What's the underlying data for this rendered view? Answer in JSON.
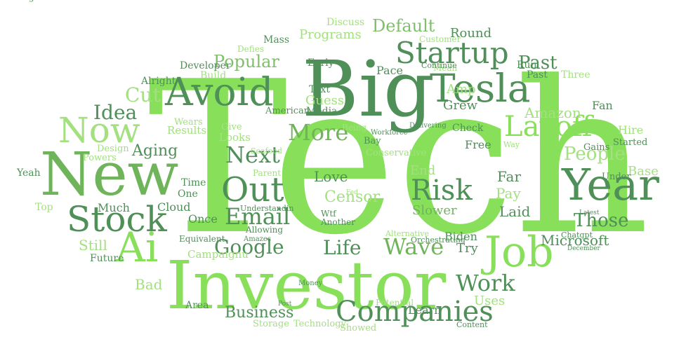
{
  "colors": {
    "light": "#a3e07f",
    "bright": "#88e05a",
    "mid": "#6fb45a",
    "dark": "#4f8f58",
    "soft": "#7fbf6a"
  },
  "words": [
    {
      "text": "Tech",
      "c": "bright"
    },
    {
      "text": "Big",
      "c": "dark"
    },
    {
      "text": "Investor",
      "c": "bright"
    },
    {
      "text": "New",
      "c": "mid"
    },
    {
      "text": "Job",
      "c": "bright"
    },
    {
      "text": "Year",
      "c": "dark"
    },
    {
      "text": "Avoid",
      "c": "dark"
    },
    {
      "text": "Tesla",
      "c": "dark"
    },
    {
      "text": "Startup",
      "c": "dark"
    },
    {
      "text": "Layoff",
      "c": "bright"
    },
    {
      "text": "Ai",
      "c": "bright"
    },
    {
      "text": "Stock",
      "c": "dark"
    },
    {
      "text": "Now",
      "c": "light"
    },
    {
      "text": "Out",
      "c": "dark"
    },
    {
      "text": "Risk",
      "c": "dark"
    },
    {
      "text": "Companies",
      "c": "dark"
    },
    {
      "text": "Wave",
      "c": "mid"
    },
    {
      "text": "More",
      "c": "mid"
    },
    {
      "text": "Next",
      "c": "dark"
    },
    {
      "text": "Email",
      "c": "dark"
    },
    {
      "text": "Google",
      "c": "dark"
    },
    {
      "text": "Work",
      "c": "dark"
    },
    {
      "text": "Life",
      "c": "dark"
    },
    {
      "text": "Business",
      "c": "dark"
    },
    {
      "text": "Idea",
      "c": "dark"
    },
    {
      "text": "Cut",
      "c": "light"
    },
    {
      "text": "Popular",
      "c": "soft"
    },
    {
      "text": "Past",
      "c": "dark"
    },
    {
      "text": "People",
      "c": "light"
    },
    {
      "text": "Those",
      "c": "dark"
    },
    {
      "text": "Default",
      "c": "soft"
    },
    {
      "text": "Aging",
      "c": "dark"
    },
    {
      "text": "Censor",
      "c": "light"
    },
    {
      "text": "Love",
      "c": "dark"
    },
    {
      "text": "Amazon",
      "c": "light"
    },
    {
      "text": "Microsoft",
      "c": "dark"
    },
    {
      "text": "Still",
      "c": "light"
    },
    {
      "text": "Bad",
      "c": "light"
    },
    {
      "text": "Pay",
      "c": "light"
    },
    {
      "text": "Far",
      "c": "dark"
    },
    {
      "text": "Laid",
      "c": "dark"
    },
    {
      "text": "Base",
      "c": "light"
    },
    {
      "text": "Uses",
      "c": "light"
    },
    {
      "text": "Try",
      "c": "dark"
    },
    {
      "text": "Slower",
      "c": "mid"
    },
    {
      "text": "End",
      "c": "light"
    },
    {
      "text": "Round",
      "c": "dark"
    },
    {
      "text": "Amp",
      "c": "light"
    },
    {
      "text": "Programs",
      "c": "light"
    },
    {
      "text": "Guess",
      "c": "light"
    },
    {
      "text": "Grew",
      "c": "dark"
    },
    {
      "text": "Much",
      "c": "dark"
    },
    {
      "text": "Cloud",
      "c": "dark"
    },
    {
      "text": "Once",
      "c": "dark"
    },
    {
      "text": "Free",
      "c": "dark"
    },
    {
      "text": "Fan",
      "c": "dark"
    },
    {
      "text": "Hire",
      "c": "light"
    },
    {
      "text": "Learn",
      "c": "dark"
    },
    {
      "text": "Biden",
      "c": "dark"
    },
    {
      "text": "Pace",
      "c": "dark"
    },
    {
      "text": "Text",
      "c": "dark"
    },
    {
      "text": "Media",
      "c": "dark"
    },
    {
      "text": "Early",
      "c": "dark"
    },
    {
      "text": "Discuss",
      "c": "light"
    },
    {
      "text": "Mass",
      "c": "dark"
    },
    {
      "text": "Run",
      "c": "dark"
    },
    {
      "text": "Past",
      "c": "dark"
    },
    {
      "text": "Three",
      "c": "light"
    },
    {
      "text": "Alright",
      "c": "dark"
    },
    {
      "text": "Build",
      "c": "light"
    },
    {
      "text": "Developer",
      "c": "dark"
    },
    {
      "text": "Defies",
      "c": "light"
    },
    {
      "text": "Customer",
      "c": "light"
    },
    {
      "text": "Mean",
      "c": "light"
    },
    {
      "text": "Continue",
      "c": "dark"
    },
    {
      "text": "American",
      "c": "dark"
    },
    {
      "text": "Wears",
      "c": "light"
    },
    {
      "text": "Results",
      "c": "light"
    },
    {
      "text": "Give",
      "c": "light"
    },
    {
      "text": "Looks",
      "c": "light"
    },
    {
      "text": "Being",
      "c": "light"
    },
    {
      "text": "Workforce",
      "c": "dark"
    },
    {
      "text": "Delivering",
      "c": "dark"
    },
    {
      "text": "Check",
      "c": "dark"
    },
    {
      "text": "Bay",
      "c": "dark"
    },
    {
      "text": "Conservative",
      "c": "light"
    },
    {
      "text": "Design",
      "c": "light"
    },
    {
      "text": "Powers",
      "c": "light"
    },
    {
      "text": "Seafood",
      "c": "light"
    },
    {
      "text": "Parent",
      "c": "light"
    },
    {
      "text": "Way",
      "c": "light"
    },
    {
      "text": "Gains",
      "c": "dark"
    },
    {
      "text": "Started",
      "c": "dark"
    },
    {
      "text": "Under",
      "c": "dark"
    },
    {
      "text": "Yeah",
      "c": "dark"
    },
    {
      "text": "Time",
      "c": "dark"
    },
    {
      "text": "One",
      "c": "dark"
    },
    {
      "text": "Fed",
      "c": "light"
    },
    {
      "text": "Top",
      "c": "light"
    },
    {
      "text": "Understandin",
      "c": "dark"
    },
    {
      "text": "Wtf",
      "c": "dark"
    },
    {
      "text": "Another",
      "c": "dark"
    },
    {
      "text": "Allowing",
      "c": "dark"
    },
    {
      "text": "Amazes",
      "c": "dark"
    },
    {
      "text": "Alternative",
      "c": "light"
    },
    {
      "text": "Orchestrating",
      "c": "dark"
    },
    {
      "text": "Latest",
      "c": "dark"
    },
    {
      "text": "Chatgpt",
      "c": "dark"
    },
    {
      "text": "December",
      "c": "dark"
    },
    {
      "text": "Equivalent",
      "c": "dark"
    },
    {
      "text": "Campaignu",
      "c": "light"
    },
    {
      "text": "Future",
      "c": "dark"
    },
    {
      "text": "Area",
      "c": "dark"
    },
    {
      "text": "Post",
      "c": "dark"
    },
    {
      "text": "Money",
      "c": "dark"
    },
    {
      "text": "Potential",
      "c": "light"
    },
    {
      "text": "Storage",
      "c": "light"
    },
    {
      "text": "Technology",
      "c": "light"
    },
    {
      "text": "Showed",
      "c": "light"
    },
    {
      "text": "Content",
      "c": "dark"
    },
    {
      "text": "Awesome",
      "c": "dark"
    },
    {
      "text": "Battling",
      "c": "dark"
    }
  ]
}
